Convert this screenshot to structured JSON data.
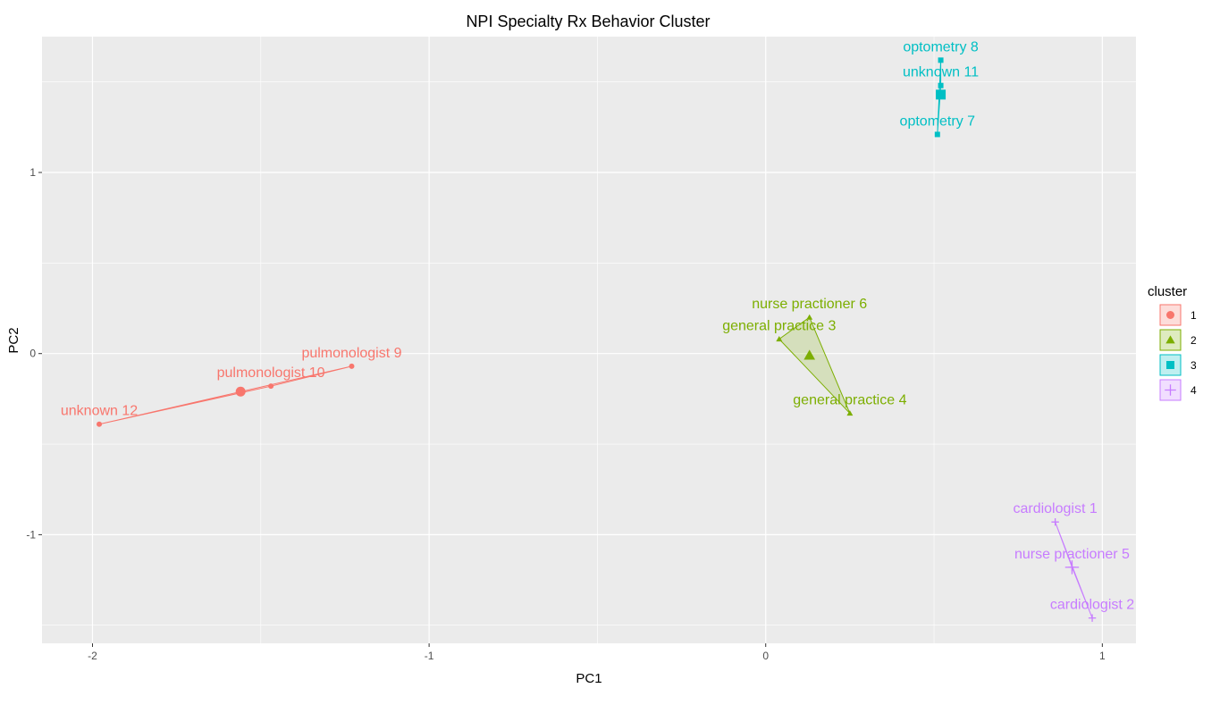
{
  "chart_data": {
    "type": "scatter",
    "title": "NPI Specialty Rx Behavior Cluster",
    "xlabel": "PC1",
    "ylabel": "PC2",
    "xlim": [
      -2.15,
      1.1
    ],
    "ylim": [
      -1.6,
      1.75
    ],
    "x_ticks": [
      -2,
      -1,
      0,
      1
    ],
    "y_ticks": [
      -1,
      0,
      1
    ],
    "x_tick_labels": [
      "-2",
      "-1",
      "0",
      "1"
    ],
    "y_tick_labels": [
      "-1",
      "0",
      "1"
    ],
    "grid": true,
    "legend_title": "cluster",
    "legend_position": "right",
    "series": [
      {
        "name": "1",
        "color": "#F8766D",
        "shape": "circle",
        "centroid": [
          -1.56,
          -0.21
        ],
        "points": [
          {
            "label": "unknown 12",
            "x": -1.98,
            "y": -0.39
          },
          {
            "label": "pulmonologist 10",
            "x": -1.47,
            "y": -0.18
          },
          {
            "label": "pulmonologist 9",
            "x": -1.23,
            "y": -0.07
          }
        ]
      },
      {
        "name": "2",
        "color": "#7CAE00",
        "shape": "triangle",
        "centroid": [
          0.13,
          -0.01
        ],
        "points": [
          {
            "label": "nurse practioner 6",
            "x": 0.13,
            "y": 0.2
          },
          {
            "label": "general practice 3",
            "x": 0.04,
            "y": 0.08
          },
          {
            "label": "general practice 4",
            "x": 0.25,
            "y": -0.33
          }
        ]
      },
      {
        "name": "3",
        "color": "#00BFC4",
        "shape": "square",
        "centroid": [
          0.52,
          1.43
        ],
        "points": [
          {
            "label": "optometry 8",
            "x": 0.52,
            "y": 1.62
          },
          {
            "label": "unknown 11",
            "x": 0.52,
            "y": 1.48
          },
          {
            "label": "optometry 7",
            "x": 0.51,
            "y": 1.21
          }
        ]
      },
      {
        "name": "4",
        "color": "#C77CFF",
        "shape": "plus",
        "centroid": [
          0.91,
          -1.18
        ],
        "points": [
          {
            "label": "cardiologist 1",
            "x": 0.86,
            "y": -0.93
          },
          {
            "label": "nurse practioner 5",
            "x": 0.91,
            "y": -1.18
          },
          {
            "label": "cardiologist 2",
            "x": 0.97,
            "y": -1.46
          }
        ]
      }
    ]
  }
}
